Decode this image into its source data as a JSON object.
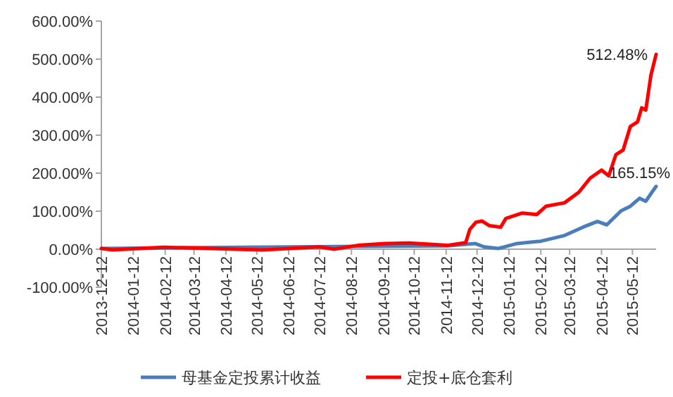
{
  "chart_data": {
    "type": "line",
    "ylim": [
      -100,
      600
    ],
    "yticks": [
      {
        "value": -100,
        "label": "-100.00%"
      },
      {
        "value": 0,
        "label": "0.00%"
      },
      {
        "value": 100,
        "label": "100.00%"
      },
      {
        "value": 200,
        "label": "200.00%"
      },
      {
        "value": 300,
        "label": "300.00%"
      },
      {
        "value": 400,
        "label": "400.00%"
      },
      {
        "value": 500,
        "label": "500.00%"
      },
      {
        "value": 600,
        "label": "600.00%"
      }
    ],
    "xlim": [
      "2013-12-12",
      "2015-06-04"
    ],
    "xticks": [
      {
        "value": "2013-12-12",
        "label": "2013-12-12"
      },
      {
        "value": "2014-01-12",
        "label": "2014-01-12"
      },
      {
        "value": "2014-02-12",
        "label": "2014-02-12"
      },
      {
        "value": "2014-03-12",
        "label": "2014-03-12"
      },
      {
        "value": "2014-04-12",
        "label": "2014-04-12"
      },
      {
        "value": "2014-05-12",
        "label": "2014-05-12"
      },
      {
        "value": "2014-06-12",
        "label": "2014-06-12"
      },
      {
        "value": "2014-07-12",
        "label": "2014-07-12"
      },
      {
        "value": "2014-08-12",
        "label": "2014-08-12"
      },
      {
        "value": "2014-09-12",
        "label": "2014-09-12"
      },
      {
        "value": "2014-10-12",
        "label": "2014-10-12"
      },
      {
        "value": "2014-11-12",
        "label": "2014-11-12"
      },
      {
        "value": "2014-12-12",
        "label": "2014-12-12"
      },
      {
        "value": "2015-01-12",
        "label": "2015-01-12"
      },
      {
        "value": "2015-02-12",
        "label": "2015-02-12"
      },
      {
        "value": "2015-03-12",
        "label": "2015-03-12"
      },
      {
        "value": "2015-04-12",
        "label": "2015-04-12"
      },
      {
        "value": "2015-05-12",
        "label": "2015-05-12"
      }
    ],
    "series": [
      {
        "name": "母基金定投累计收益",
        "color": "#4a7ebb",
        "x": [
          "2013-12-12",
          "2014-11-13",
          "2014-12-10",
          "2014-12-19",
          "2015-01-02",
          "2015-01-20",
          "2015-02-12",
          "2015-03-07",
          "2015-03-25",
          "2015-04-08",
          "2015-04-17",
          "2015-05-01",
          "2015-05-10",
          "2015-05-19",
          "2015-05-25",
          "2015-05-31",
          "2015-06-04"
        ],
        "values": [
          2,
          9,
          15,
          6,
          2,
          15,
          21,
          36,
          58,
          73,
          64,
          101,
          113,
          134,
          126,
          150,
          165.15
        ]
      },
      {
        "name": "定投+底仓套利",
        "color": "#ff0000",
        "x": [
          "2013-12-12",
          "2013-12-23",
          "2014-02-11",
          "2014-04-21",
          "2014-05-18",
          "2014-07-12",
          "2014-07-26",
          "2014-08-18",
          "2014-09-14",
          "2014-10-07",
          "2014-11-13",
          "2014-12-01",
          "2014-12-05",
          "2014-12-11",
          "2014-12-17",
          "2014-12-24",
          "2015-01-04",
          "2015-01-09",
          "2015-01-25",
          "2015-02-08",
          "2015-02-17",
          "2015-03-07",
          "2015-03-21",
          "2015-04-01",
          "2015-04-12",
          "2015-04-19",
          "2015-04-26",
          "2015-05-03",
          "2015-05-10",
          "2015-05-17",
          "2015-05-21",
          "2015-05-25",
          "2015-05-30",
          "2015-06-04"
        ],
        "values": [
          2,
          -2,
          5,
          0,
          -2,
          6,
          0,
          10,
          15,
          16,
          10,
          17,
          52,
          71,
          74,
          62,
          58,
          81,
          95,
          91,
          113,
          122,
          150,
          187,
          208,
          193,
          249,
          261,
          323,
          335,
          372,
          366,
          458,
          512.48
        ]
      }
    ],
    "annotations": [
      {
        "text": "512.48%",
        "x": "2015-06-04",
        "y": 512.48
      },
      {
        "text": "165.15%",
        "x": "2015-06-04",
        "y": 165.15
      }
    ],
    "legend": "bottom",
    "grid": false
  }
}
